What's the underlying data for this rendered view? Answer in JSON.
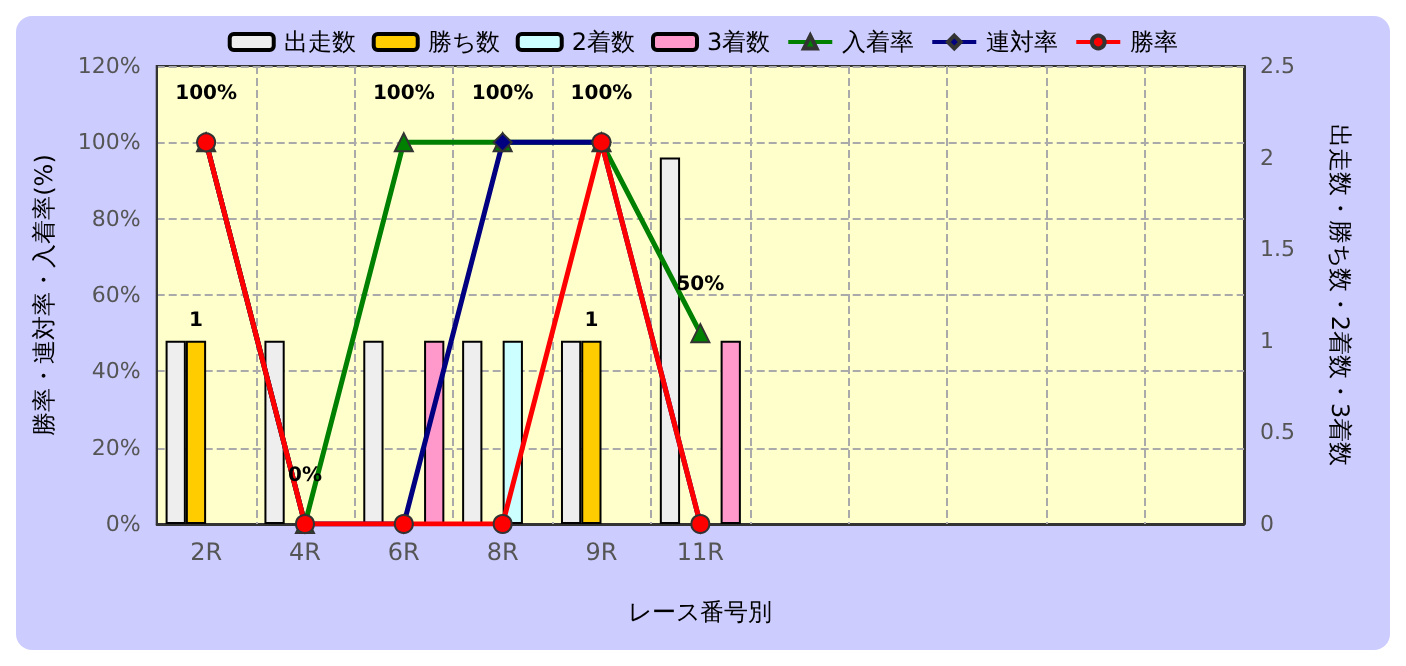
{
  "chart_data": {
    "type": "bar",
    "xlabel": "レース番号別",
    "ylabel": "勝率・連対率・入着率(%)",
    "y2label": "出走数・勝ち数・2着数・3着数",
    "categories": [
      "2R",
      "4R",
      "6R",
      "8R",
      "9R",
      "11R",
      null,
      null,
      null,
      null,
      null
    ],
    "series": [
      {
        "name": "出走数",
        "axis": "y2",
        "color": "#eeeeee",
        "values": [
          1,
          1,
          1,
          1,
          1,
          2,
          null,
          null,
          null,
          null,
          null
        ]
      },
      {
        "name": "勝ち数",
        "axis": "y2",
        "color": "#ffcc00",
        "values": [
          1,
          null,
          null,
          null,
          1,
          null,
          null,
          null,
          null,
          null,
          null
        ],
        "value_labels": [
          "1",
          null,
          null,
          null,
          "1",
          null,
          null,
          null,
          null,
          null,
          null
        ]
      },
      {
        "name": "2着数",
        "axis": "y2",
        "color": "#ccffff",
        "values": [
          null,
          null,
          null,
          1,
          null,
          null,
          null,
          null,
          null,
          null,
          null
        ]
      },
      {
        "name": "3着数",
        "axis": "y2",
        "color": "#ff99cc",
        "values": [
          null,
          null,
          1,
          null,
          null,
          1,
          null,
          null,
          null,
          null,
          null
        ]
      },
      {
        "name": "入着率",
        "type": "line",
        "marker": "triangle",
        "color": "#008000",
        "values": [
          100,
          0,
          100,
          100,
          100,
          50,
          null,
          null,
          null,
          null,
          null
        ],
        "value_labels": [
          "100%",
          "0%",
          "100%",
          "100%",
          "100%",
          "50%",
          null,
          null,
          null,
          null,
          null
        ]
      },
      {
        "name": "連対率",
        "type": "line",
        "marker": "diamond",
        "color": "#000080",
        "values": [
          100,
          0,
          0,
          100,
          100,
          0,
          null,
          null,
          null,
          null,
          null
        ]
      },
      {
        "name": "勝率",
        "type": "line",
        "marker": "circle",
        "color": "#ff0000",
        "values": [
          100,
          0,
          0,
          0,
          100,
          0,
          null,
          null,
          null,
          null,
          null
        ]
      }
    ],
    "ylim": [
      0,
      120
    ],
    "yticks": [
      {
        "value": 0,
        "label": "0%"
      },
      {
        "value": 20,
        "label": "20%"
      },
      {
        "value": 40,
        "label": "40%"
      },
      {
        "value": 60,
        "label": "60%"
      },
      {
        "value": 80,
        "label": "80%"
      },
      {
        "value": 100,
        "label": "100%"
      },
      {
        "value": 120,
        "label": "120%"
      }
    ],
    "y2lim": [
      0,
      2.5
    ],
    "y2ticks": [
      0,
      0.5,
      1,
      1.5,
      2,
      2.5
    ],
    "grid": true,
    "legend": "top"
  }
}
